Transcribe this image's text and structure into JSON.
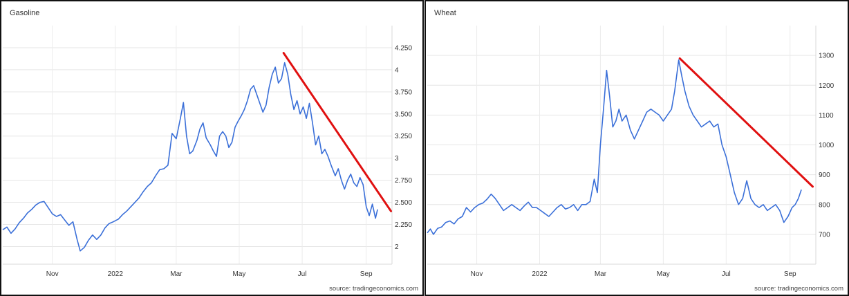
{
  "panels": [
    {
      "title": "Gasoline",
      "source": "source: tradingeconomics.com"
    },
    {
      "title": "Wheat",
      "source": "source: tradingeconomics.com"
    }
  ],
  "chart_data": [
    {
      "type": "line",
      "title": "Gasoline",
      "xlabel": "",
      "ylabel": "",
      "x_ticks": [
        "Nov",
        "2022",
        "Mar",
        "May",
        "Jul",
        "Sep"
      ],
      "y_ticks": [
        "2",
        "2.250",
        "2.500",
        "2.750",
        "3",
        "3.250",
        "3.500",
        "3.750",
        "4",
        "4.250"
      ],
      "ylim": [
        1.8,
        4.5
      ],
      "x_range": [
        "2021-09-14",
        "2022-09-12"
      ],
      "grid": true,
      "y_axis_side": "right",
      "series": [
        {
          "color": "#3a6fd8",
          "points": [
            [
              "2021-09-14",
              2.19
            ],
            [
              "2021-09-18",
              2.22
            ],
            [
              "2021-09-22",
              2.15
            ],
            [
              "2021-09-26",
              2.2
            ],
            [
              "2021-09-30",
              2.27
            ],
            [
              "2021-10-04",
              2.32
            ],
            [
              "2021-10-08",
              2.38
            ],
            [
              "2021-10-12",
              2.42
            ],
            [
              "2021-10-16",
              2.47
            ],
            [
              "2021-10-20",
              2.5
            ],
            [
              "2021-10-24",
              2.51
            ],
            [
              "2021-10-28",
              2.44
            ],
            [
              "2021-11-01",
              2.37
            ],
            [
              "2021-11-05",
              2.34
            ],
            [
              "2021-11-09",
              2.36
            ],
            [
              "2021-11-13",
              2.3
            ],
            [
              "2021-11-17",
              2.24
            ],
            [
              "2021-11-21",
              2.28
            ],
            [
              "2021-11-25",
              2.08
            ],
            [
              "2021-11-28",
              1.95
            ],
            [
              "2021-12-02",
              1.99
            ],
            [
              "2021-12-06",
              2.07
            ],
            [
              "2021-12-10",
              2.13
            ],
            [
              "2021-12-14",
              2.08
            ],
            [
              "2021-12-18",
              2.13
            ],
            [
              "2021-12-22",
              2.21
            ],
            [
              "2021-12-26",
              2.26
            ],
            [
              "2021-12-30",
              2.28
            ],
            [
              "2022-01-04",
              2.31
            ],
            [
              "2022-01-08",
              2.36
            ],
            [
              "2022-01-12",
              2.4
            ],
            [
              "2022-01-16",
              2.45
            ],
            [
              "2022-01-20",
              2.5
            ],
            [
              "2022-01-24",
              2.55
            ],
            [
              "2022-01-28",
              2.62
            ],
            [
              "2022-02-01",
              2.68
            ],
            [
              "2022-02-05",
              2.72
            ],
            [
              "2022-02-09",
              2.8
            ],
            [
              "2022-02-13",
              2.87
            ],
            [
              "2022-02-17",
              2.88
            ],
            [
              "2022-02-21",
              2.92
            ],
            [
              "2022-02-25",
              3.28
            ],
            [
              "2022-03-01",
              3.22
            ],
            [
              "2022-03-05",
              3.45
            ],
            [
              "2022-03-08",
              3.63
            ],
            [
              "2022-03-11",
              3.25
            ],
            [
              "2022-03-14",
              3.05
            ],
            [
              "2022-03-17",
              3.08
            ],
            [
              "2022-03-21",
              3.2
            ],
            [
              "2022-03-24",
              3.33
            ],
            [
              "2022-03-27",
              3.4
            ],
            [
              "2022-03-30",
              3.23
            ],
            [
              "2022-04-03",
              3.15
            ],
            [
              "2022-04-06",
              3.08
            ],
            [
              "2022-04-09",
              3.02
            ],
            [
              "2022-04-12",
              3.25
            ],
            [
              "2022-04-15",
              3.3
            ],
            [
              "2022-04-18",
              3.25
            ],
            [
              "2022-04-21",
              3.12
            ],
            [
              "2022-04-24",
              3.18
            ],
            [
              "2022-04-27",
              3.35
            ],
            [
              "2022-04-30",
              3.42
            ],
            [
              "2022-05-03",
              3.48
            ],
            [
              "2022-05-06",
              3.55
            ],
            [
              "2022-05-09",
              3.65
            ],
            [
              "2022-05-12",
              3.78
            ],
            [
              "2022-05-15",
              3.82
            ],
            [
              "2022-05-18",
              3.72
            ],
            [
              "2022-05-21",
              3.62
            ],
            [
              "2022-05-24",
              3.52
            ],
            [
              "2022-05-27",
              3.6
            ],
            [
              "2022-05-30",
              3.8
            ],
            [
              "2022-06-02",
              3.95
            ],
            [
              "2022-06-05",
              4.03
            ],
            [
              "2022-06-08",
              3.85
            ],
            [
              "2022-06-11",
              3.9
            ],
            [
              "2022-06-14",
              4.08
            ],
            [
              "2022-06-17",
              3.95
            ],
            [
              "2022-06-20",
              3.72
            ],
            [
              "2022-06-23",
              3.55
            ],
            [
              "2022-06-26",
              3.65
            ],
            [
              "2022-06-29",
              3.5
            ],
            [
              "2022-07-02",
              3.58
            ],
            [
              "2022-07-05",
              3.45
            ],
            [
              "2022-07-08",
              3.62
            ],
            [
              "2022-07-11",
              3.4
            ],
            [
              "2022-07-14",
              3.15
            ],
            [
              "2022-07-17",
              3.25
            ],
            [
              "2022-07-20",
              3.05
            ],
            [
              "2022-07-23",
              3.1
            ],
            [
              "2022-07-26",
              3.02
            ],
            [
              "2022-07-29",
              2.92
            ],
            [
              "2022-08-02",
              2.8
            ],
            [
              "2022-08-05",
              2.88
            ],
            [
              "2022-08-08",
              2.75
            ],
            [
              "2022-08-11",
              2.65
            ],
            [
              "2022-08-14",
              2.75
            ],
            [
              "2022-08-17",
              2.82
            ],
            [
              "2022-08-20",
              2.72
            ],
            [
              "2022-08-23",
              2.68
            ],
            [
              "2022-08-26",
              2.78
            ],
            [
              "2022-08-29",
              2.7
            ],
            [
              "2022-09-01",
              2.45
            ],
            [
              "2022-09-04",
              2.35
            ],
            [
              "2022-09-07",
              2.48
            ],
            [
              "2022-09-10",
              2.32
            ],
            [
              "2022-09-12",
              2.42
            ]
          ]
        }
      ],
      "trendline": {
        "color": "#e01010",
        "from": [
          "2022-06-13",
          4.19
        ],
        "to": [
          "2022-09-25",
          2.4
        ]
      }
    },
    {
      "type": "line",
      "title": "Wheat",
      "xlabel": "",
      "ylabel": "",
      "x_ticks": [
        "Nov",
        "2022",
        "Mar",
        "May",
        "Jul",
        "Sep"
      ],
      "y_ticks": [
        "700",
        "800",
        "900",
        "1000",
        "1100",
        "1200",
        "1300"
      ],
      "ylim": [
        600,
        1400
      ],
      "x_range": [
        "2021-09-14",
        "2022-09-12"
      ],
      "grid": true,
      "y_axis_side": "right",
      "series": [
        {
          "color": "#3a6fd8",
          "points": [
            [
              "2021-09-14",
              705
            ],
            [
              "2021-09-17",
              718
            ],
            [
              "2021-09-20",
              700
            ],
            [
              "2021-09-24",
              720
            ],
            [
              "2021-09-28",
              725
            ],
            [
              "2021-10-02",
              740
            ],
            [
              "2021-10-06",
              745
            ],
            [
              "2021-10-10",
              735
            ],
            [
              "2021-10-14",
              752
            ],
            [
              "2021-10-18",
              760
            ],
            [
              "2021-10-22",
              790
            ],
            [
              "2021-10-26",
              775
            ],
            [
              "2021-10-30",
              790
            ],
            [
              "2021-11-03",
              800
            ],
            [
              "2021-11-07",
              805
            ],
            [
              "2021-11-11",
              818
            ],
            [
              "2021-11-15",
              835
            ],
            [
              "2021-11-19",
              820
            ],
            [
              "2021-11-23",
              800
            ],
            [
              "2021-11-27",
              780
            ],
            [
              "2021-12-01",
              790
            ],
            [
              "2021-12-05",
              800
            ],
            [
              "2021-12-09",
              790
            ],
            [
              "2021-12-13",
              780
            ],
            [
              "2021-12-17",
              795
            ],
            [
              "2021-12-21",
              808
            ],
            [
              "2021-12-25",
              790
            ],
            [
              "2021-12-29",
              790
            ],
            [
              "2022-01-02",
              780
            ],
            [
              "2022-01-06",
              770
            ],
            [
              "2022-01-10",
              760
            ],
            [
              "2022-01-14",
              775
            ],
            [
              "2022-01-18",
              790
            ],
            [
              "2022-01-22",
              800
            ],
            [
              "2022-01-26",
              785
            ],
            [
              "2022-01-30",
              790
            ],
            [
              "2022-02-03",
              800
            ],
            [
              "2022-02-07",
              780
            ],
            [
              "2022-02-11",
              800
            ],
            [
              "2022-02-15",
              800
            ],
            [
              "2022-02-19",
              810
            ],
            [
              "2022-02-23",
              885
            ],
            [
              "2022-02-26",
              840
            ],
            [
              "2022-03-01",
              1000
            ],
            [
              "2022-03-04",
              1120
            ],
            [
              "2022-03-07",
              1250
            ],
            [
              "2022-03-10",
              1160
            ],
            [
              "2022-03-13",
              1060
            ],
            [
              "2022-03-16",
              1080
            ],
            [
              "2022-03-19",
              1120
            ],
            [
              "2022-03-22",
              1080
            ],
            [
              "2022-03-26",
              1100
            ],
            [
              "2022-03-30",
              1050
            ],
            [
              "2022-04-03",
              1020
            ],
            [
              "2022-04-07",
              1050
            ],
            [
              "2022-04-11",
              1080
            ],
            [
              "2022-04-15",
              1110
            ],
            [
              "2022-04-19",
              1120
            ],
            [
              "2022-04-23",
              1110
            ],
            [
              "2022-04-27",
              1100
            ],
            [
              "2022-05-01",
              1080
            ],
            [
              "2022-05-05",
              1100
            ],
            [
              "2022-05-09",
              1120
            ],
            [
              "2022-05-12",
              1180
            ],
            [
              "2022-05-16",
              1285
            ],
            [
              "2022-05-19",
              1230
            ],
            [
              "2022-05-22",
              1180
            ],
            [
              "2022-05-26",
              1130
            ],
            [
              "2022-05-30",
              1100
            ],
            [
              "2022-06-03",
              1080
            ],
            [
              "2022-06-07",
              1060
            ],
            [
              "2022-06-11",
              1070
            ],
            [
              "2022-06-15",
              1080
            ],
            [
              "2022-06-19",
              1060
            ],
            [
              "2022-06-23",
              1070
            ],
            [
              "2022-06-27",
              1000
            ],
            [
              "2022-07-01",
              960
            ],
            [
              "2022-07-05",
              900
            ],
            [
              "2022-07-09",
              840
            ],
            [
              "2022-07-13",
              800
            ],
            [
              "2022-07-17",
              820
            ],
            [
              "2022-07-21",
              880
            ],
            [
              "2022-07-25",
              820
            ],
            [
              "2022-07-29",
              800
            ],
            [
              "2022-08-02",
              790
            ],
            [
              "2022-08-06",
              800
            ],
            [
              "2022-08-10",
              780
            ],
            [
              "2022-08-14",
              790
            ],
            [
              "2022-08-18",
              800
            ],
            [
              "2022-08-22",
              780
            ],
            [
              "2022-08-26",
              740
            ],
            [
              "2022-08-30",
              760
            ],
            [
              "2022-09-03",
              790
            ],
            [
              "2022-09-06",
              800
            ],
            [
              "2022-09-09",
              820
            ],
            [
              "2022-09-12",
              850
            ]
          ]
        }
      ],
      "trendline": {
        "color": "#e01010",
        "from": [
          "2022-05-17",
          1290
        ],
        "to": [
          "2022-09-23",
          860
        ]
      }
    }
  ]
}
